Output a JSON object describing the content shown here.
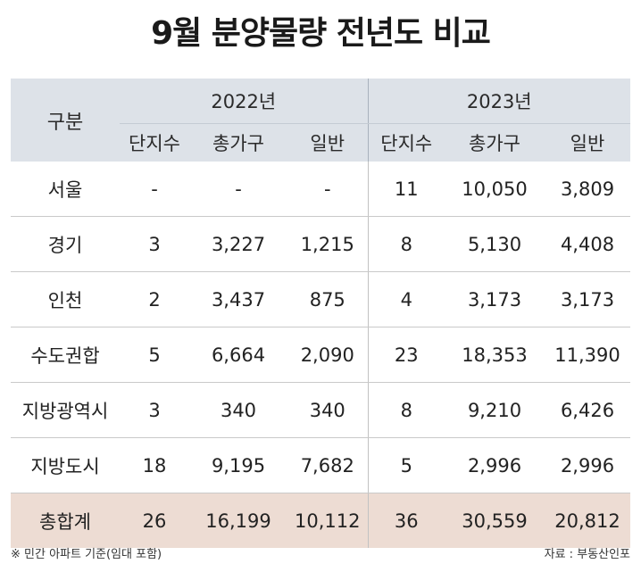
{
  "title": "9월 분양물량 전년도 비교",
  "chart_data": {
    "type": "table",
    "title": "9월 분양물량 전년도 비교",
    "row_header_label": "구분",
    "groups": [
      "2022년",
      "2023년"
    ],
    "sub_columns": [
      "단지수",
      "총가구",
      "일반"
    ],
    "rows": [
      {
        "name": "서울",
        "y2022": [
          "-",
          "-",
          "-"
        ],
        "y2023": [
          "11",
          "10,050",
          "3,809"
        ]
      },
      {
        "name": "경기",
        "y2022": [
          "3",
          "3,227",
          "1,215"
        ],
        "y2023": [
          "8",
          "5,130",
          "4,408"
        ]
      },
      {
        "name": "인천",
        "y2022": [
          "2",
          "3,437",
          "875"
        ],
        "y2023": [
          "4",
          "3,173",
          "3,173"
        ]
      },
      {
        "name": "수도권합",
        "y2022": [
          "5",
          "6,664",
          "2,090"
        ],
        "y2023": [
          "23",
          "18,353",
          "11,390"
        ]
      },
      {
        "name": "지방광역시",
        "y2022": [
          "3",
          "340",
          "340"
        ],
        "y2023": [
          "8",
          "9,210",
          "6,426"
        ]
      },
      {
        "name": "지방도시",
        "y2022": [
          "18",
          "9,195",
          "7,682"
        ],
        "y2023": [
          "5",
          "2,996",
          "2,996"
        ]
      },
      {
        "name": "총합계",
        "y2022": [
          "26",
          "16,199",
          "10,112"
        ],
        "y2023": [
          "36",
          "30,559",
          "20,812"
        ]
      }
    ]
  },
  "footer": {
    "note": "※ 민간 아파트 기준(임대 포함)",
    "source": "자료 : 부동산인포"
  },
  "colors": {
    "header_bg": "#dde2e8",
    "total_row_bg": "#eddcd3"
  }
}
